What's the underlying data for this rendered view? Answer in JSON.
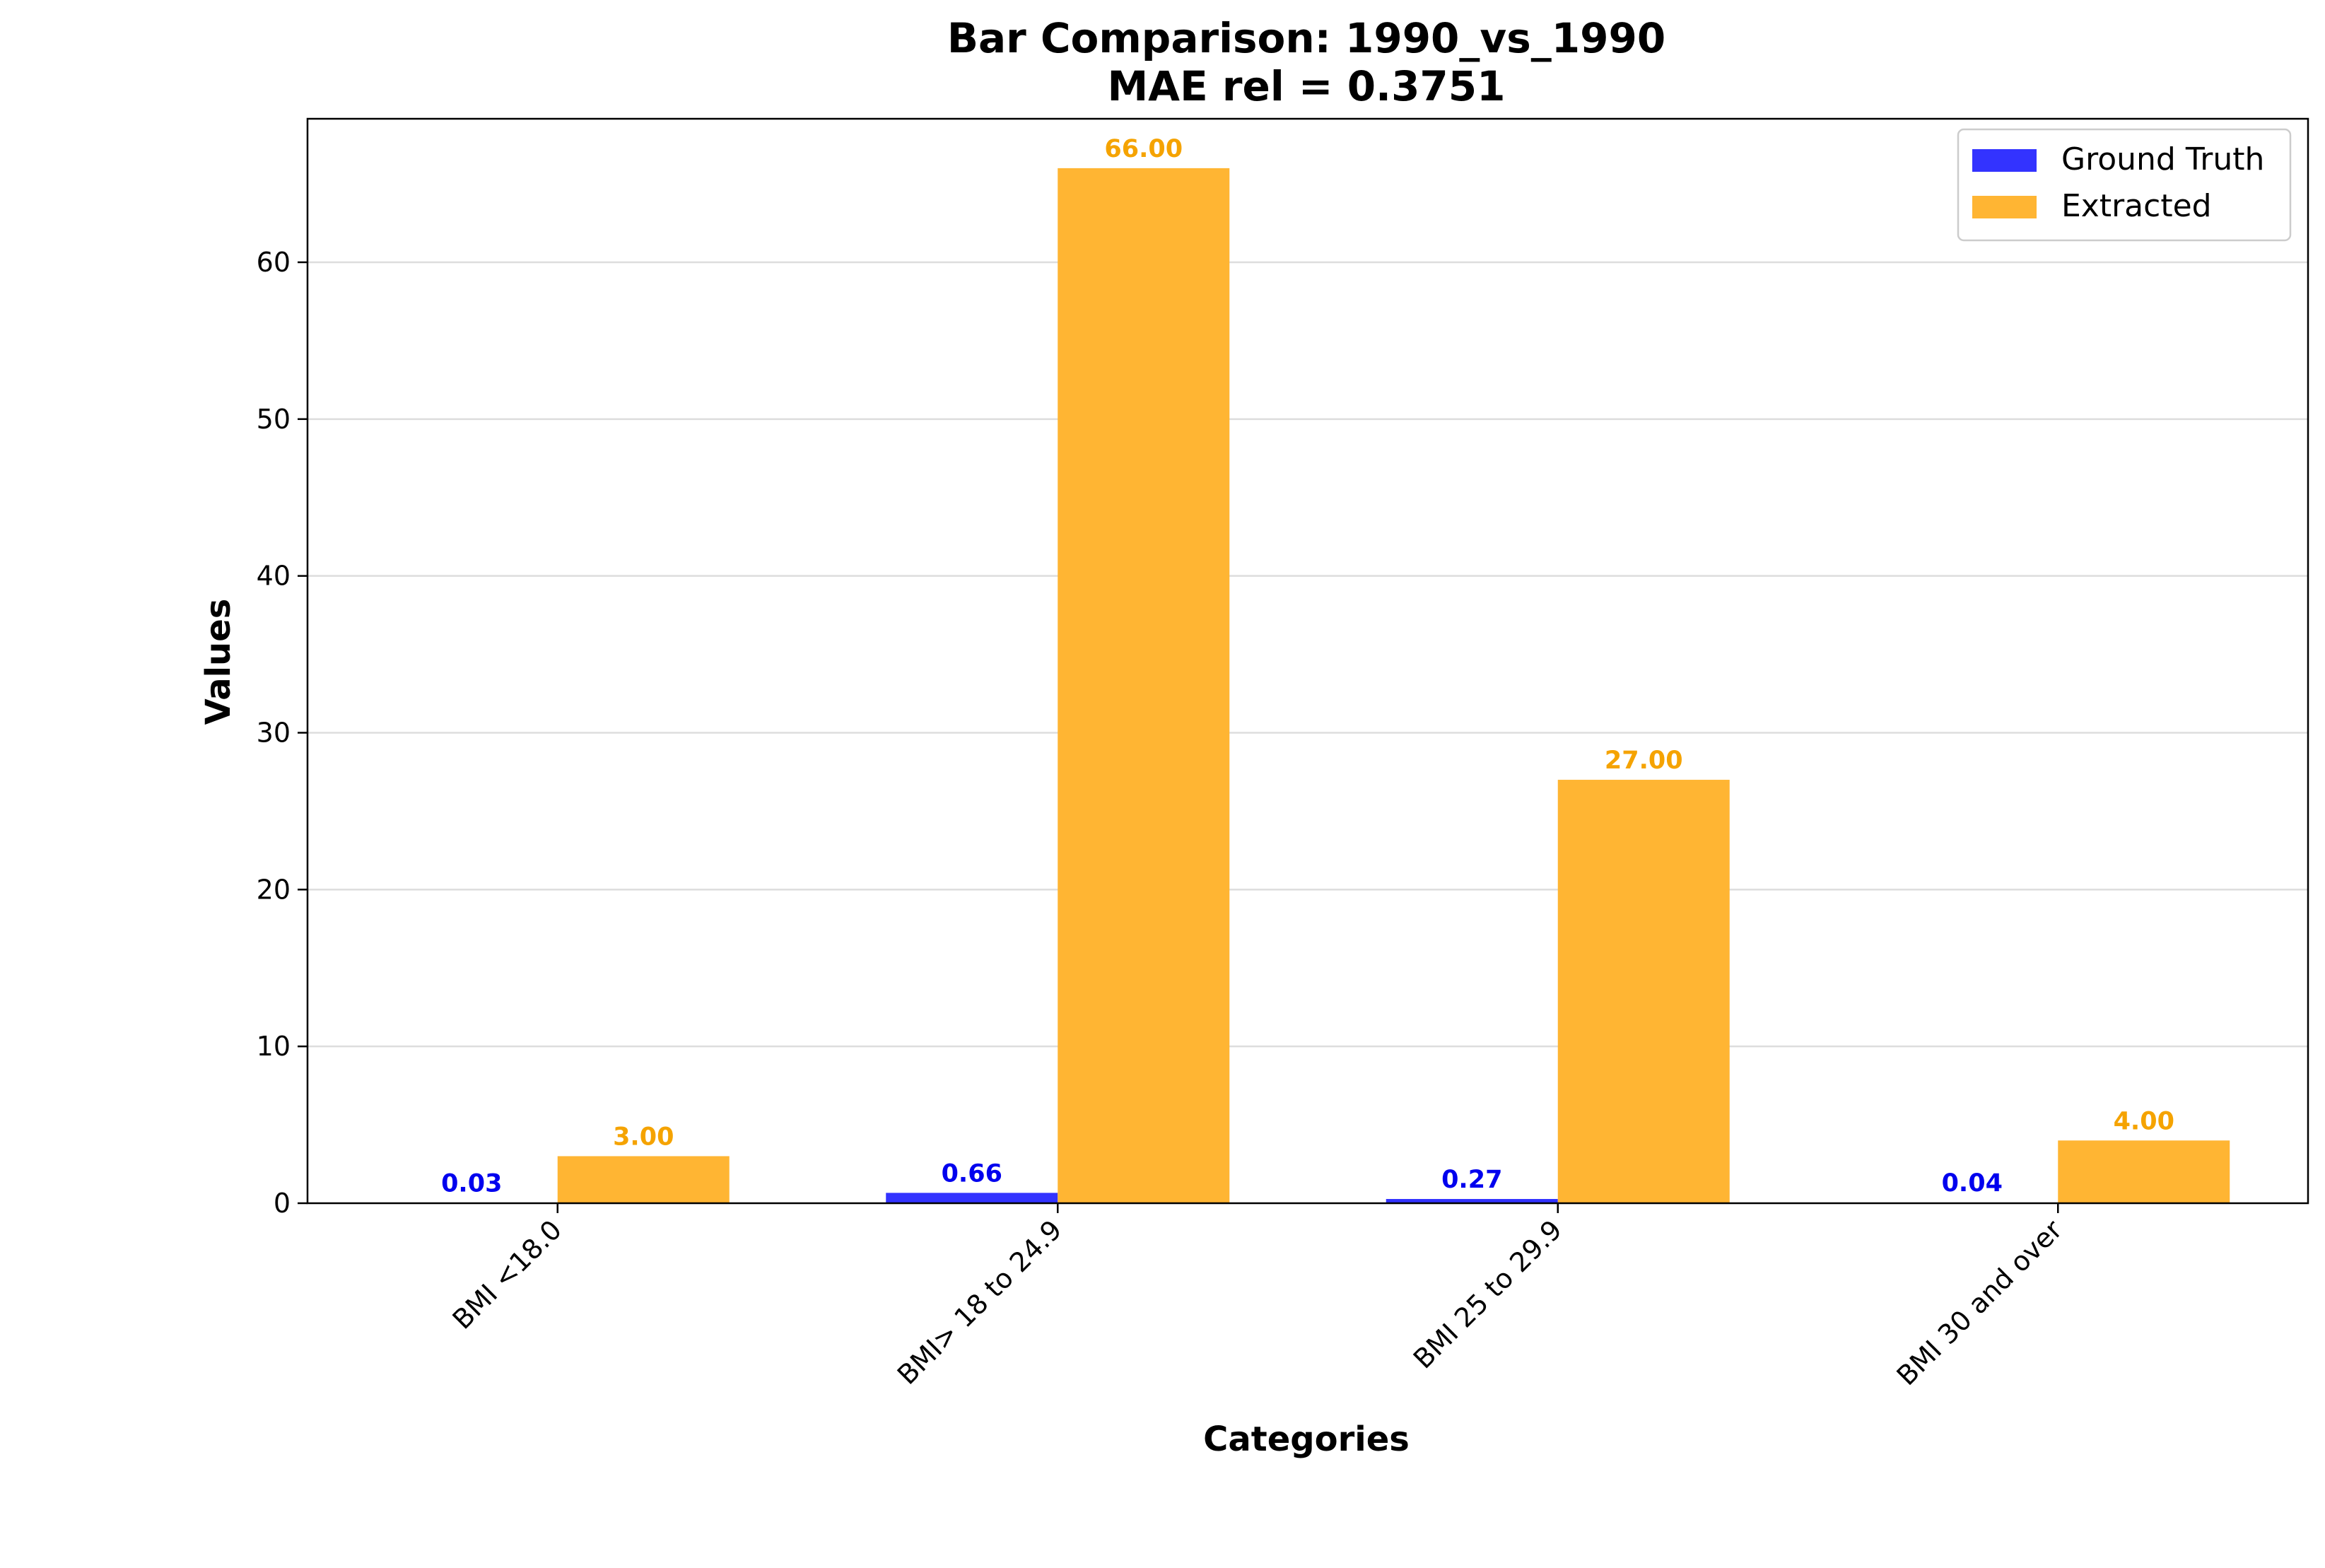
{
  "chart_data": {
    "type": "bar",
    "title_line1": "Bar Comparison: 1990_vs_1990",
    "title_line2": "MAE rel = 0.3751",
    "xlabel": "Categories",
    "ylabel": "Values",
    "ylim": [
      0,
      69.15
    ],
    "yticks": [
      0,
      10,
      20,
      30,
      40,
      50,
      60
    ],
    "grid": "horizontal",
    "legend_position": "top-right",
    "categories": [
      "BMI <18.0",
      "BMI> 18 to 24.9",
      "BMI 25 to 29.9",
      "BMI 30 and over"
    ],
    "series": [
      {
        "name": "Ground Truth",
        "color": "#3333ff",
        "label_color": "#0000ee",
        "values": [
          0.03,
          0.66,
          0.27,
          0.04
        ],
        "labels": [
          "0.03",
          "0.66",
          "0.27",
          "0.04"
        ]
      },
      {
        "name": "Extracted",
        "color": "#ffb533",
        "label_color": "#f5a300",
        "values": [
          3.0,
          66.0,
          27.0,
          4.0
        ],
        "labels": [
          "3.00",
          "66.00",
          "27.00",
          "4.00"
        ]
      }
    ]
  }
}
